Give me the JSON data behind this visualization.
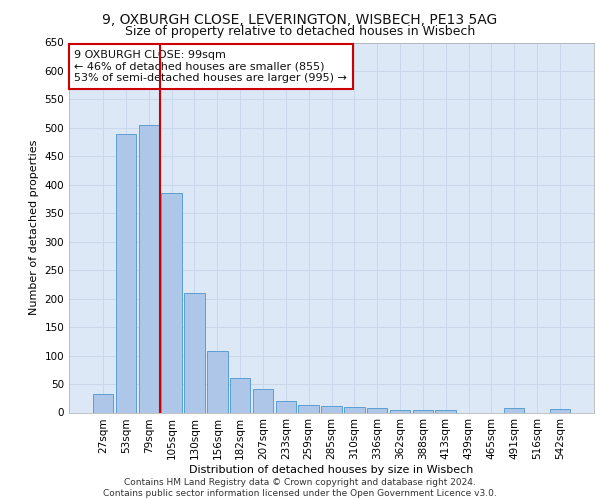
{
  "title_line1": "9, OXBURGH CLOSE, LEVERINGTON, WISBECH, PE13 5AG",
  "title_line2": "Size of property relative to detached houses in Wisbech",
  "xlabel": "Distribution of detached houses by size in Wisbech",
  "ylabel": "Number of detached properties",
  "categories": [
    "27sqm",
    "53sqm",
    "79sqm",
    "105sqm",
    "130sqm",
    "156sqm",
    "182sqm",
    "207sqm",
    "233sqm",
    "259sqm",
    "285sqm",
    "310sqm",
    "336sqm",
    "362sqm",
    "388sqm",
    "413sqm",
    "439sqm",
    "465sqm",
    "491sqm",
    "516sqm",
    "542sqm"
  ],
  "values": [
    33,
    490,
    505,
    385,
    210,
    108,
    60,
    42,
    20,
    14,
    12,
    10,
    8,
    5,
    5,
    4,
    0,
    0,
    8,
    0,
    6
  ],
  "bar_color": "#aec6e8",
  "bar_edge_color": "#5a9fd4",
  "vline_x": 2.5,
  "vline_color": "#cc0000",
  "annotation_text": "9 OXBURGH CLOSE: 99sqm\n← 46% of detached houses are smaller (855)\n53% of semi-detached houses are larger (995) →",
  "annotation_box_color": "#ffffff",
  "annotation_box_edge": "#cc0000",
  "ylim": [
    0,
    650
  ],
  "yticks": [
    0,
    50,
    100,
    150,
    200,
    250,
    300,
    350,
    400,
    450,
    500,
    550,
    600,
    650
  ],
  "grid_color": "#c8d8ea",
  "background_color": "#dce8f5",
  "footer_text": "Contains HM Land Registry data © Crown copyright and database right 2024.\nContains public sector information licensed under the Open Government Licence v3.0.",
  "title_fontsize": 10,
  "subtitle_fontsize": 9,
  "axis_label_fontsize": 8,
  "tick_fontsize": 7.5,
  "annotation_fontsize": 8,
  "footer_fontsize": 6.5
}
